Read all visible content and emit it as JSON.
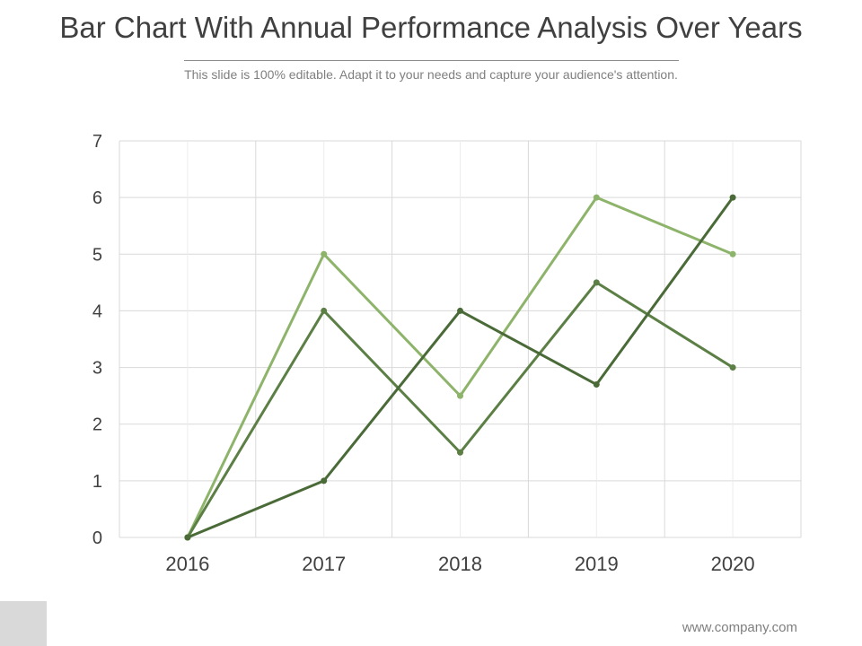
{
  "slide": {
    "title": "Bar Chart With Annual Performance Analysis Over Years",
    "subtitle": "This slide is 100% editable. Adapt it to your needs and capture your audience's attention.",
    "footer_url": "www.company.com"
  },
  "colors": {
    "title": "#404040",
    "subtitle": "#7f7f7f",
    "grid": "#d9d9d9",
    "series": [
      "#8db46a",
      "#5b7f44",
      "#4a6a38"
    ]
  },
  "chart_data": {
    "type": "line",
    "title": "",
    "xlabel": "",
    "ylabel": "",
    "categories": [
      "2016",
      "2017",
      "2018",
      "2019",
      "2020"
    ],
    "ylim": [
      0,
      7
    ],
    "yticks": [
      "0",
      "1",
      "2",
      "3",
      "4",
      "5",
      "6",
      "7"
    ],
    "grid": true,
    "legend": "none",
    "series": [
      {
        "values": [
          0,
          5,
          2.5,
          6,
          5
        ]
      },
      {
        "values": [
          0,
          4,
          1.5,
          4.5,
          3
        ]
      },
      {
        "values": [
          0,
          1,
          4,
          2.7,
          6
        ]
      }
    ]
  }
}
